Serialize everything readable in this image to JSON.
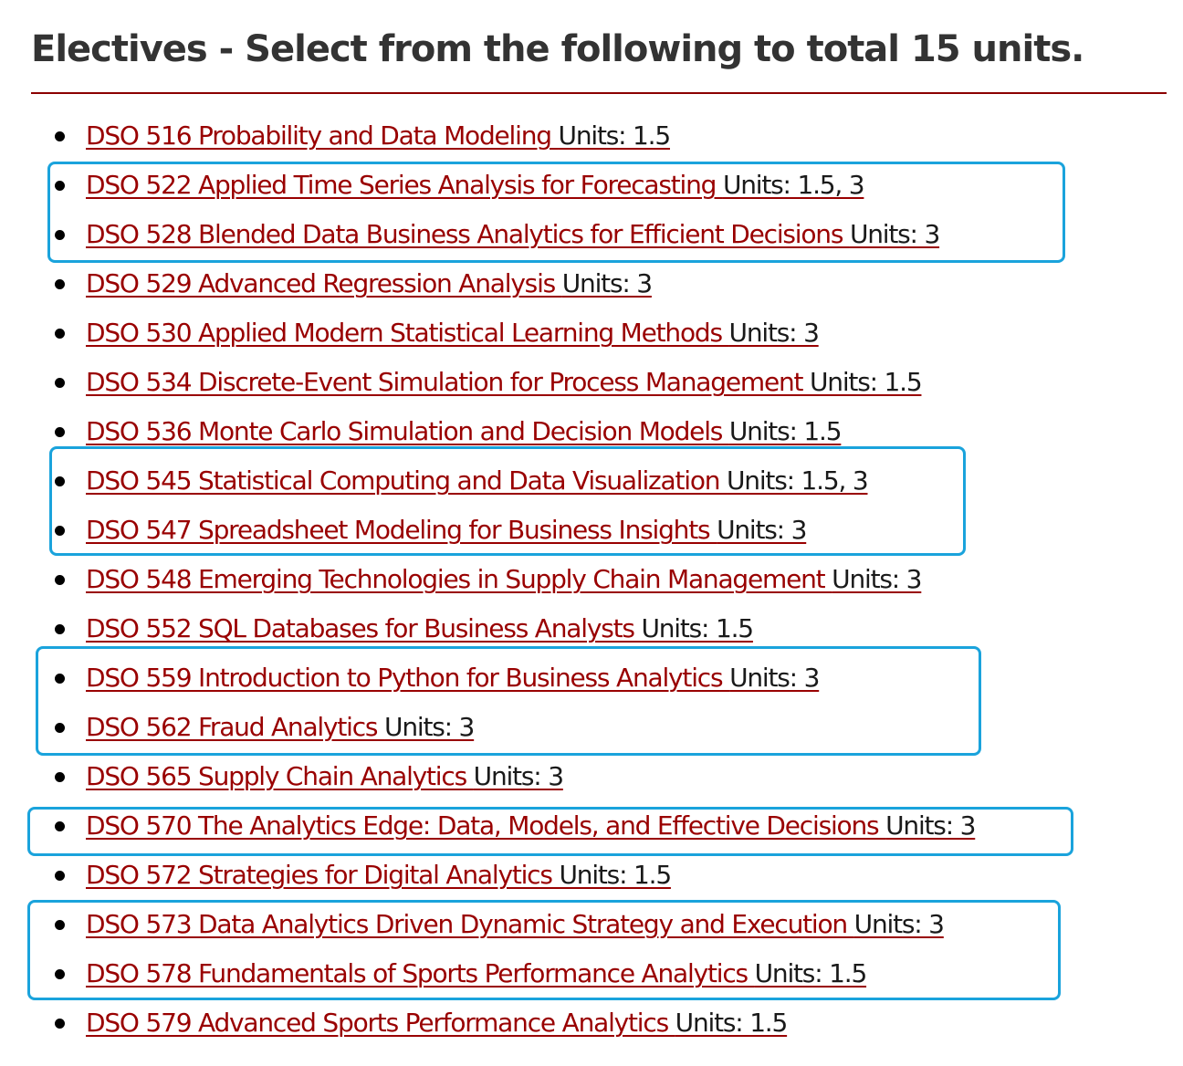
{
  "heading": "Electives - Select from the following to total 15 units.",
  "colors": {
    "link": "#990000",
    "rule": "#8b0000",
    "highlight_box": "#1aa3dc",
    "heading_text": "#333333"
  },
  "courses": [
    {
      "title": "DSO 516 Probability and Data Modeling ",
      "units": "Units: 1.5"
    },
    {
      "title": "DSO 522 Applied Time Series Analysis for Forecasting ",
      "units": "Units: 1.5, 3"
    },
    {
      "title": "DSO 528 Blended Data Business Analytics for Efficient Decisions ",
      "units": "Units: 3"
    },
    {
      "title": "DSO 529 Advanced Regression Analysis ",
      "units": "Units: 3"
    },
    {
      "title": "DSO 530 Applied Modern Statistical Learning Methods ",
      "units": "Units: 3"
    },
    {
      "title": "DSO 534 Discrete-Event Simulation for Process Management ",
      "units": "Units: 1.5"
    },
    {
      "title": "DSO 536 Monte Carlo Simulation and Decision Models ",
      "units": "Units: 1.5"
    },
    {
      "title": "DSO 545 Statistical Computing and Data Visualization ",
      "units": "Units: 1.5, 3"
    },
    {
      "title": "DSO 547 Spreadsheet Modeling for Business Insights ",
      "units": "Units: 3"
    },
    {
      "title": "DSO 548 Emerging Technologies in Supply Chain Management ",
      "units": "Units: 3"
    },
    {
      "title": "DSO 552 SQL Databases for Business Analysts ",
      "units": "Units: 1.5"
    },
    {
      "title": "DSO 559 Introduction to Python for Business Analytics ",
      "units": "Units: 3"
    },
    {
      "title": "DSO 562 Fraud Analytics ",
      "units": "Units: 3"
    },
    {
      "title": "DSO 565 Supply Chain Analytics ",
      "units": "Units: 3"
    },
    {
      "title": "DSO 570 The Analytics Edge: Data, Models, and Effective Decisions ",
      "units": "Units: 3"
    },
    {
      "title": "DSO 572 Strategies for Digital Analytics ",
      "units": "Units: 1.5"
    },
    {
      "title": "DSO 573 Data Analytics Driven Dynamic Strategy and Execution ",
      "units": "Units: 3"
    },
    {
      "title": "DSO 578 Fundamentals of Sports Performance Analytics ",
      "units": "Units: 1.5"
    },
    {
      "title": "DSO 579 Advanced Sports Performance Analytics ",
      "units": "Units: 1.5"
    }
  ]
}
